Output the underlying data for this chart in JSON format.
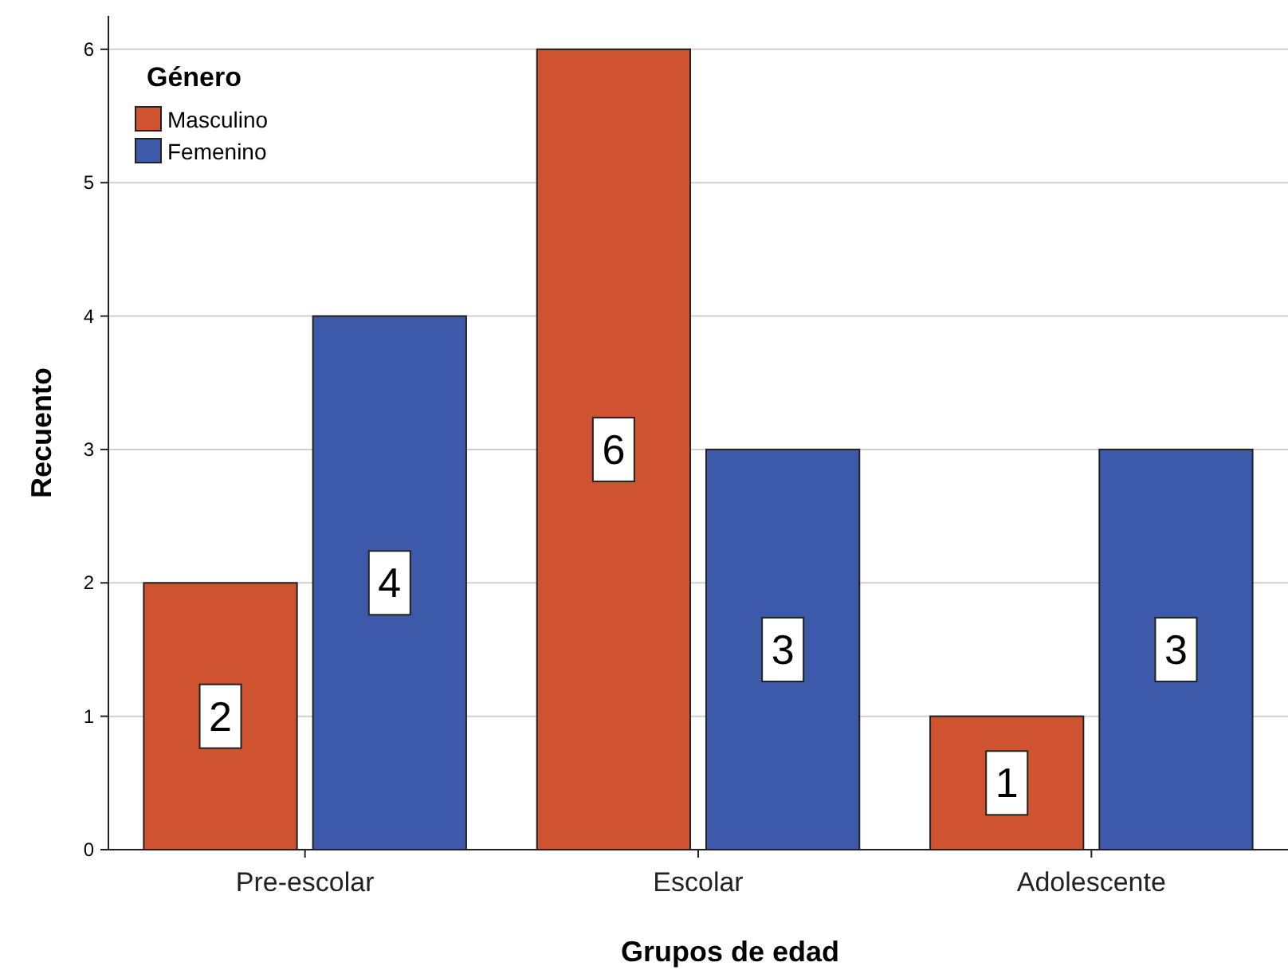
{
  "chart_data": {
    "type": "bar",
    "xlabel": "Grupos de edad",
    "ylabel": "Recuento",
    "legend_title": "Género",
    "categories": [
      "Pre-escolar",
      "Escolar",
      "Adolescente"
    ],
    "series": [
      {
        "name": "Masculino",
        "color": "#d05331",
        "values": [
          2,
          6,
          1
        ]
      },
      {
        "name": "Femenino",
        "color": "#3d59a9",
        "values": [
          4,
          3,
          3
        ]
      }
    ],
    "ylim": [
      0,
      6.25
    ],
    "yticks": [
      0,
      1,
      2,
      3,
      4,
      5,
      6
    ],
    "grid": "y",
    "legend": "top left",
    "data_labels": true
  }
}
